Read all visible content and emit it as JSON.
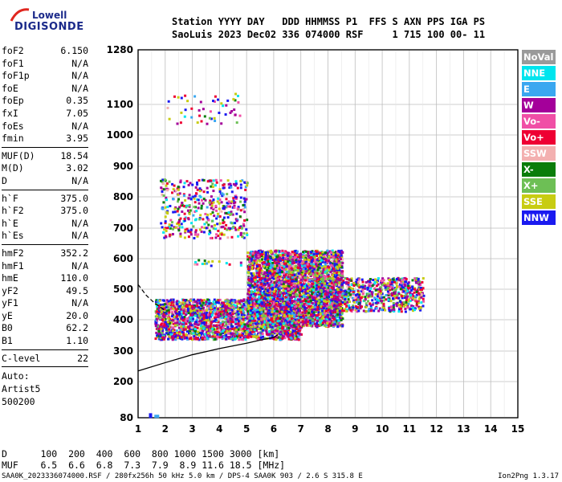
{
  "logo": {
    "line1": "Lowell",
    "line2": "DIGISONDE"
  },
  "header": {
    "line1": "Station YYYY DAY   DDD HHMMSS P1  FFS S AXN PPS IGA PS",
    "line2": "SaoLuis 2023 Dec02 336 074000 RSF     1 715 100 00- 11"
  },
  "params": {
    "group1": [
      {
        "k": "foF2",
        "v": "6.150"
      },
      {
        "k": "foF1",
        "v": "N/A"
      },
      {
        "k": "foF1p",
        "v": "N/A"
      },
      {
        "k": "foE",
        "v": "N/A"
      },
      {
        "k": "foEp",
        "v": "0.35"
      },
      {
        "k": "fxI",
        "v": "7.05"
      },
      {
        "k": "foEs",
        "v": "N/A"
      },
      {
        "k": "fmin",
        "v": "3.95"
      }
    ],
    "group2": [
      {
        "k": "MUF(D)",
        "v": "18.54"
      },
      {
        "k": "M(D)",
        "v": "3.02"
      },
      {
        "k": "D",
        "v": "N/A"
      }
    ],
    "group3": [
      {
        "k": "h`F",
        "v": "375.0"
      },
      {
        "k": "h`F2",
        "v": "375.0"
      },
      {
        "k": "h`E",
        "v": "N/A"
      },
      {
        "k": "h`Es",
        "v": "N/A"
      }
    ],
    "group4": [
      {
        "k": "hmF2",
        "v": "352.2"
      },
      {
        "k": "hmF1",
        "v": "N/A"
      },
      {
        "k": "hmE",
        "v": "110.0"
      },
      {
        "k": "yF2",
        "v": "49.5"
      },
      {
        "k": "yF1",
        "v": "N/A"
      },
      {
        "k": "yE",
        "v": "20.0"
      },
      {
        "k": "B0",
        "v": "62.2"
      },
      {
        "k": "B1",
        "v": "1.10"
      }
    ],
    "clevel": {
      "k": "C-level",
      "v": "22"
    },
    "auto": [
      "Auto:",
      "Artist5",
      "500200"
    ]
  },
  "legend": [
    {
      "label": "NoVal",
      "color": "#9a9a9a"
    },
    {
      "label": "NNE",
      "color": "#00e5ee"
    },
    {
      "label": "E",
      "color": "#3aa7f0"
    },
    {
      "label": "W",
      "color": "#a4009a"
    },
    {
      "label": "Vo-",
      "color": "#f04fa6"
    },
    {
      "label": "Vo+",
      "color": "#ee0033"
    },
    {
      "label": "SSW",
      "color": "#f3b0b0"
    },
    {
      "label": "X-",
      "color": "#0a7d0a"
    },
    {
      "label": "X+",
      "color": "#6dbf55"
    },
    {
      "label": "SSE",
      "color": "#c8cc12"
    },
    {
      "label": "NNW",
      "color": "#1a1af0"
    }
  ],
  "bottom": {
    "dline": "D      100  200  400  600  800 1000 1500 3000 [km]",
    "mufline": "MUF    6.5  6.6  6.8  7.3  7.9  8.9 11.6 18.5 [MHz]"
  },
  "footer": {
    "left": "SAA0K_2023336074000.RSF / 280fx256h 50 kHz 5.0 km / DPS-4 SAA0K 903 / 2.6 S 315.8 E",
    "right": "Ion2Png 1.3.17"
  },
  "chart_data": {
    "type": "scatter",
    "x_ticks": [
      1,
      2,
      3,
      4,
      5,
      6,
      7,
      8,
      9,
      10,
      11,
      12,
      13,
      14,
      15
    ],
    "y_ticks": [
      80,
      200,
      300,
      400,
      500,
      600,
      700,
      800,
      900,
      1000,
      1100,
      1280
    ],
    "xlim": [
      1,
      15
    ],
    "ylim": [
      80,
      1280
    ],
    "y_scale": "nonlinear",
    "grid": true,
    "legend_placement": "right",
    "profile_curve": {
      "x": [
        1.0,
        2.0,
        3.0,
        4.0,
        5.0,
        5.5,
        6.0,
        6.15
      ],
      "y": [
        235,
        262,
        288,
        308,
        325,
        335,
        344,
        352
      ]
    },
    "trace_dashed": {
      "x": [
        1.0,
        1.3,
        1.6,
        2.0
      ],
      "y": [
        515,
        480,
        455,
        430
      ]
    },
    "echo_regions": [
      {
        "x0": 1.6,
        "x1": 7.0,
        "y0": 340,
        "y1": 470,
        "density": 2.0
      },
      {
        "x0": 5.0,
        "x1": 8.5,
        "y0": 380,
        "y1": 630,
        "density": 2.5
      },
      {
        "x0": 7.5,
        "x1": 11.5,
        "y0": 430,
        "y1": 540,
        "density": 1.2
      },
      {
        "x0": 1.8,
        "x1": 5.0,
        "y0": 670,
        "y1": 860,
        "density": 0.45
      },
      {
        "x0": 2.0,
        "x1": 4.8,
        "y0": 1040,
        "y1": 1140,
        "density": 0.12
      },
      {
        "x0": 3.0,
        "x1": 4.8,
        "y0": 580,
        "y1": 600,
        "density": 0.3
      }
    ]
  }
}
